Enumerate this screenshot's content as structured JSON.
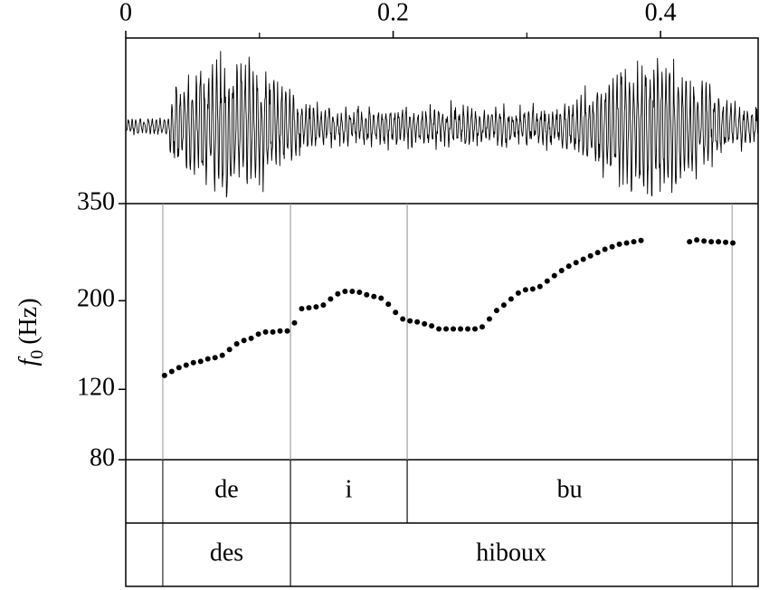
{
  "chart_data": {
    "type": "scatter",
    "log_y": true,
    "color": "#000000",
    "xlim": [
      0,
      0.473
    ],
    "xticks": [
      0,
      0.2,
      0.4
    ],
    "xminorticks": [
      0.1,
      0.3
    ],
    "ylim": [
      80,
      350
    ],
    "yticks": [
      80,
      120,
      200,
      350
    ],
    "y_label": {
      "symbol": "f",
      "subscript": "0",
      "unit": "(Hz)"
    },
    "x": [
      0.029,
      0.0344,
      0.0398,
      0.0452,
      0.0506,
      0.056,
      0.0614,
      0.0668,
      0.0722,
      0.0776,
      0.083,
      0.0884,
      0.0938,
      0.0992,
      0.1046,
      0.11,
      0.1154,
      0.1208,
      0.1262,
      0.1316,
      0.137,
      0.1424,
      0.1478,
      0.1532,
      0.1586,
      0.164,
      0.1694,
      0.1748,
      0.1802,
      0.1856,
      0.191,
      0.1964,
      0.2018,
      0.2072,
      0.2126,
      0.218,
      0.2234,
      0.2288,
      0.2342,
      0.2396,
      0.245,
      0.2504,
      0.2558,
      0.2612,
      0.2666,
      0.272,
      0.2774,
      0.2828,
      0.2882,
      0.2936,
      0.299,
      0.3044,
      0.3098,
      0.3152,
      0.3206,
      0.326,
      0.3314,
      0.3368,
      0.3422,
      0.3476,
      0.353,
      0.3584,
      0.3638,
      0.3692,
      0.3746,
      0.38,
      0.3854,
      0.4036,
      0.4217,
      0.4271,
      0.4325,
      0.4379,
      0.4433,
      0.4487,
      0.4541
    ],
    "values": [
      130,
      133,
      136,
      138,
      140,
      141,
      143,
      144,
      146,
      151,
      156,
      159,
      161,
      165,
      167,
      167,
      168,
      168,
      176,
      191,
      192,
      193,
      195,
      202,
      208,
      211,
      211,
      210,
      207,
      205,
      203,
      196,
      187,
      180,
      178,
      177,
      175,
      173,
      170,
      170,
      170,
      170,
      170,
      170,
      172,
      180,
      189,
      195,
      202,
      209,
      213,
      214,
      217,
      224,
      231,
      238,
      244,
      249,
      254,
      259,
      264,
      269,
      273,
      277,
      279,
      281,
      283,
      null,
      281,
      284,
      282,
      281,
      281,
      280,
      279
    ],
    "tiers": [
      {
        "intervals": [
          {
            "start": 0.0277,
            "end": 0.1232,
            "label": "de"
          },
          {
            "start": 0.1232,
            "end": 0.2105,
            "label": "i"
          },
          {
            "start": 0.2105,
            "end": 0.4535,
            "label": "bu"
          }
        ]
      },
      {
        "intervals": [
          {
            "start": 0.0277,
            "end": 0.1232,
            "label": "des"
          },
          {
            "start": 0.1232,
            "end": 0.4535,
            "label": "hiboux"
          }
        ]
      }
    ]
  }
}
